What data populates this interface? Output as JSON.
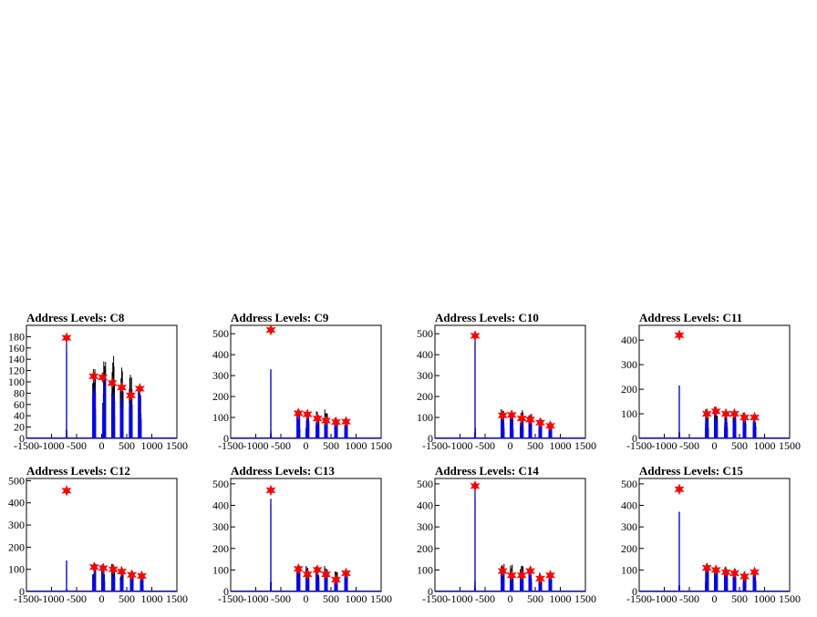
{
  "chart_data": [
    {
      "type": "line",
      "title": "Address Levels: C8",
      "xlim": [
        -1500,
        1500
      ],
      "ylim": [
        0,
        200
      ],
      "x_ticks": [
        "-1500",
        "-1000",
        "-500",
        "0",
        "500",
        "1000",
        "1500"
      ],
      "y_ticks": [
        "0",
        "20",
        "40",
        "60",
        "80",
        "100",
        "120",
        "140",
        "160",
        "180"
      ],
      "bursts": [
        {
          "center": -700,
          "blue_peak": 178,
          "black_peak": 182
        },
        {
          "center": -150,
          "blue_peak": 110,
          "black_peak": 135
        },
        {
          "center": 50,
          "blue_peak": 108,
          "black_peak": 140
        },
        {
          "center": 230,
          "blue_peak": 98,
          "black_peak": 148
        },
        {
          "center": 400,
          "blue_peak": 90,
          "black_peak": 130
        },
        {
          "center": 580,
          "blue_peak": 76,
          "black_peak": 115
        },
        {
          "center": 760,
          "blue_peak": 88,
          "black_peak": 90
        }
      ],
      "markers": [
        {
          "x": -700,
          "y": 178
        },
        {
          "x": -160,
          "y": 110
        },
        {
          "x": 20,
          "y": 108
        },
        {
          "x": 210,
          "y": 98
        },
        {
          "x": 400,
          "y": 90
        },
        {
          "x": 580,
          "y": 76
        },
        {
          "x": 760,
          "y": 88
        }
      ]
    },
    {
      "type": "line",
      "title": "Address Levels: C9",
      "xlim": [
        -1500,
        1500
      ],
      "ylim": [
        0,
        540
      ],
      "x_ticks": [
        "-1500",
        "-1000",
        "-500",
        "0",
        "500",
        "1000",
        "1500"
      ],
      "y_ticks": [
        "0",
        "100",
        "200",
        "300",
        "400",
        "500"
      ],
      "bursts": [
        {
          "center": -700,
          "blue_peak": 520,
          "black_peak": 330
        },
        {
          "center": -150,
          "blue_peak": 120,
          "black_peak": 125
        },
        {
          "center": 30,
          "blue_peak": 115,
          "black_peak": 125
        },
        {
          "center": 230,
          "blue_peak": 95,
          "black_peak": 130
        },
        {
          "center": 400,
          "blue_peak": 85,
          "black_peak": 145
        },
        {
          "center": 600,
          "blue_peak": 78,
          "black_peak": 100
        },
        {
          "center": 800,
          "blue_peak": 80,
          "black_peak": 85
        }
      ],
      "markers": [
        {
          "x": -700,
          "y": 518
        },
        {
          "x": -150,
          "y": 120
        },
        {
          "x": 30,
          "y": 115
        },
        {
          "x": 230,
          "y": 95
        },
        {
          "x": 400,
          "y": 85
        },
        {
          "x": 600,
          "y": 78
        },
        {
          "x": 800,
          "y": 80
        }
      ]
    },
    {
      "type": "line",
      "title": "Address Levels: C10",
      "xlim": [
        -1500,
        1500
      ],
      "ylim": [
        0,
        540
      ],
      "x_ticks": [
        "-1500",
        "-1000",
        "-500",
        "0",
        "500",
        "1000",
        "1500"
      ],
      "y_ticks": [
        "0",
        "100",
        "200",
        "300",
        "400",
        "500"
      ],
      "bursts": [
        {
          "center": -700,
          "blue_peak": 495,
          "black_peak": 470
        },
        {
          "center": -150,
          "blue_peak": 110,
          "black_peak": 140
        },
        {
          "center": 30,
          "blue_peak": 112,
          "black_peak": 125
        },
        {
          "center": 230,
          "blue_peak": 95,
          "black_peak": 135
        },
        {
          "center": 400,
          "blue_peak": 90,
          "black_peak": 120
        },
        {
          "center": 600,
          "blue_peak": 75,
          "black_peak": 95
        },
        {
          "center": 800,
          "blue_peak": 60,
          "black_peak": 80
        }
      ],
      "markers": [
        {
          "x": -700,
          "y": 490
        },
        {
          "x": -150,
          "y": 110
        },
        {
          "x": 30,
          "y": 112
        },
        {
          "x": 230,
          "y": 95
        },
        {
          "x": 400,
          "y": 90
        },
        {
          "x": 600,
          "y": 75
        },
        {
          "x": 800,
          "y": 60
        }
      ]
    },
    {
      "type": "line",
      "title": "Address Levels: C11",
      "xlim": [
        -1500,
        1500
      ],
      "ylim": [
        0,
        460
      ],
      "x_ticks": [
        "-1500",
        "-1000",
        "-500",
        "0",
        "500",
        "1000",
        "1500"
      ],
      "y_ticks": [
        "0",
        "100",
        "200",
        "300",
        "400"
      ],
      "bursts": [
        {
          "center": -700,
          "blue_peak": 460,
          "black_peak": 215
        },
        {
          "center": -150,
          "blue_peak": 100,
          "black_peak": 125
        },
        {
          "center": 30,
          "blue_peak": 110,
          "black_peak": 130
        },
        {
          "center": 230,
          "blue_peak": 100,
          "black_peak": 125
        },
        {
          "center": 400,
          "blue_peak": 100,
          "black_peak": 120
        },
        {
          "center": 600,
          "blue_peak": 85,
          "black_peak": 110
        },
        {
          "center": 800,
          "blue_peak": 85,
          "black_peak": 90
        }
      ],
      "markers": [
        {
          "x": -700,
          "y": 420
        },
        {
          "x": -150,
          "y": 100
        },
        {
          "x": 30,
          "y": 110
        },
        {
          "x": 230,
          "y": 100
        },
        {
          "x": 400,
          "y": 100
        },
        {
          "x": 600,
          "y": 85
        },
        {
          "x": 800,
          "y": 85
        }
      ]
    },
    {
      "type": "line",
      "title": "Address Levels: C12",
      "xlim": [
        -1500,
        1500
      ],
      "ylim": [
        0,
        510
      ],
      "x_ticks": [
        "-1500",
        "-1000",
        "-500",
        "0",
        "500",
        "1000",
        "1500"
      ],
      "y_ticks": [
        "0",
        "100",
        "200",
        "300",
        "400",
        "500"
      ],
      "bursts": [
        {
          "center": -700,
          "blue_peak": 460,
          "black_peak": 140
        },
        {
          "center": -150,
          "blue_peak": 110,
          "black_peak": 125
        },
        {
          "center": 30,
          "blue_peak": 105,
          "black_peak": 125
        },
        {
          "center": 230,
          "blue_peak": 100,
          "black_peak": 130
        },
        {
          "center": 400,
          "blue_peak": 90,
          "black_peak": 120
        },
        {
          "center": 600,
          "blue_peak": 75,
          "black_peak": 95
        },
        {
          "center": 800,
          "blue_peak": 70,
          "black_peak": 80
        }
      ],
      "markers": [
        {
          "x": -700,
          "y": 455
        },
        {
          "x": -150,
          "y": 110
        },
        {
          "x": 30,
          "y": 105
        },
        {
          "x": 230,
          "y": 100
        },
        {
          "x": 400,
          "y": 90
        },
        {
          "x": 600,
          "y": 75
        },
        {
          "x": 800,
          "y": 70
        }
      ]
    },
    {
      "type": "line",
      "title": "Address Levels: C13",
      "xlim": [
        -1500,
        1500
      ],
      "ylim": [
        0,
        525
      ],
      "x_ticks": [
        "-1500",
        "-1000",
        "-500",
        "0",
        "500",
        "1000",
        "1500"
      ],
      "y_ticks": [
        "0",
        "100",
        "200",
        "300",
        "400",
        "500"
      ],
      "bursts": [
        {
          "center": -700,
          "blue_peak": 475,
          "black_peak": 430
        },
        {
          "center": -150,
          "blue_peak": 105,
          "black_peak": 120
        },
        {
          "center": 30,
          "blue_peak": 80,
          "black_peak": 125
        },
        {
          "center": 230,
          "blue_peak": 100,
          "black_peak": 130
        },
        {
          "center": 400,
          "blue_peak": 80,
          "black_peak": 120
        },
        {
          "center": 600,
          "blue_peak": 55,
          "black_peak": 95
        },
        {
          "center": 800,
          "blue_peak": 85,
          "black_peak": 95
        }
      ],
      "markers": [
        {
          "x": -700,
          "y": 470
        },
        {
          "x": -150,
          "y": 105
        },
        {
          "x": 30,
          "y": 80
        },
        {
          "x": 230,
          "y": 100
        },
        {
          "x": 400,
          "y": 80
        },
        {
          "x": 600,
          "y": 55
        },
        {
          "x": 800,
          "y": 85
        }
      ]
    },
    {
      "type": "line",
      "title": "Address Levels: C14",
      "xlim": [
        -1500,
        1500
      ],
      "ylim": [
        0,
        525
      ],
      "x_ticks": [
        "-1500",
        "-1000",
        "-500",
        "0",
        "500",
        "1000",
        "1500"
      ],
      "y_ticks": [
        "0",
        "100",
        "200",
        "300",
        "400",
        "500"
      ],
      "bursts": [
        {
          "center": -700,
          "blue_peak": 495,
          "black_peak": 480
        },
        {
          "center": -150,
          "blue_peak": 95,
          "black_peak": 130
        },
        {
          "center": 30,
          "blue_peak": 80,
          "black_peak": 130
        },
        {
          "center": 230,
          "blue_peak": 75,
          "black_peak": 125
        },
        {
          "center": 400,
          "blue_peak": 95,
          "black_peak": 120
        },
        {
          "center": 600,
          "blue_peak": 60,
          "black_peak": 90
        },
        {
          "center": 800,
          "blue_peak": 75,
          "black_peak": 85
        }
      ],
      "markers": [
        {
          "x": -700,
          "y": 490
        },
        {
          "x": -150,
          "y": 95
        },
        {
          "x": 30,
          "y": 75
        },
        {
          "x": 230,
          "y": 75
        },
        {
          "x": 400,
          "y": 95
        },
        {
          "x": 600,
          "y": 60
        },
        {
          "x": 800,
          "y": 75
        }
      ]
    },
    {
      "type": "line",
      "title": "Address Levels: C15",
      "xlim": [
        -1500,
        1500
      ],
      "ylim": [
        0,
        525
      ],
      "x_ticks": [
        "-1500",
        "-1000",
        "-500",
        "0",
        "500",
        "1000",
        "1500"
      ],
      "y_ticks": [
        "0",
        "100",
        "200",
        "300",
        "400",
        "500"
      ],
      "bursts": [
        {
          "center": -700,
          "blue_peak": 480,
          "black_peak": 370
        },
        {
          "center": -150,
          "blue_peak": 110,
          "black_peak": 125
        },
        {
          "center": 30,
          "blue_peak": 100,
          "black_peak": 120
        },
        {
          "center": 230,
          "blue_peak": 95,
          "black_peak": 120
        },
        {
          "center": 400,
          "blue_peak": 85,
          "black_peak": 110
        },
        {
          "center": 600,
          "blue_peak": 70,
          "black_peak": 95
        },
        {
          "center": 800,
          "blue_peak": 90,
          "black_peak": 100
        }
      ],
      "markers": [
        {
          "x": -700,
          "y": 475
        },
        {
          "x": -150,
          "y": 110
        },
        {
          "x": 30,
          "y": 100
        },
        {
          "x": 230,
          "y": 90
        },
        {
          "x": 400,
          "y": 85
        },
        {
          "x": 600,
          "y": 70
        },
        {
          "x": 800,
          "y": 90
        }
      ]
    }
  ],
  "colors": {
    "trace": "#0000ff",
    "overlay": "#000000",
    "marker": "#ff0000",
    "frame": "#000000"
  }
}
